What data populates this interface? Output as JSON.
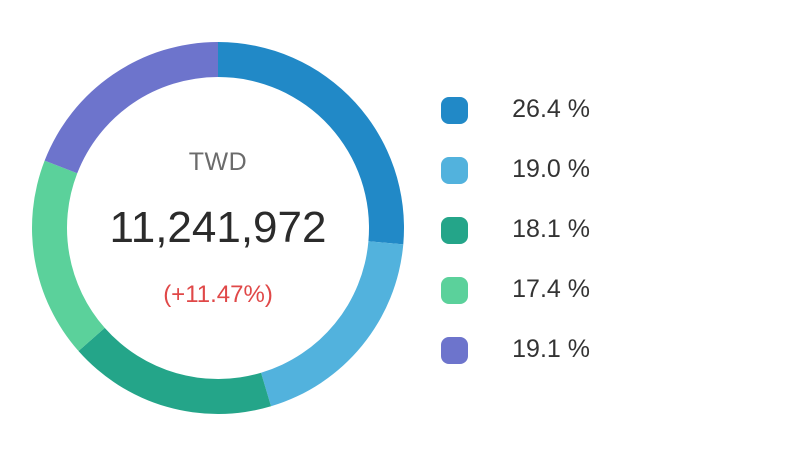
{
  "chart_data": {
    "type": "pie",
    "variant": "donut",
    "center": {
      "currency": "TWD",
      "total": "11,241,972",
      "change": "(+11.47%)",
      "change_color": "#e04848"
    },
    "slices": [
      {
        "value": 26.4,
        "label": "26.4 %",
        "color": "#2189c7"
      },
      {
        "value": 19.0,
        "label": "19.0 %",
        "color": "#52b2dd"
      },
      {
        "value": 18.1,
        "label": "18.1 %",
        "color": "#24a589"
      },
      {
        "value": 17.4,
        "label": "17.4 %",
        "color": "#5bd19b"
      },
      {
        "value": 19.1,
        "label": "19.1 %",
        "color": "#6d74cc"
      }
    ],
    "legend_position": "right"
  }
}
